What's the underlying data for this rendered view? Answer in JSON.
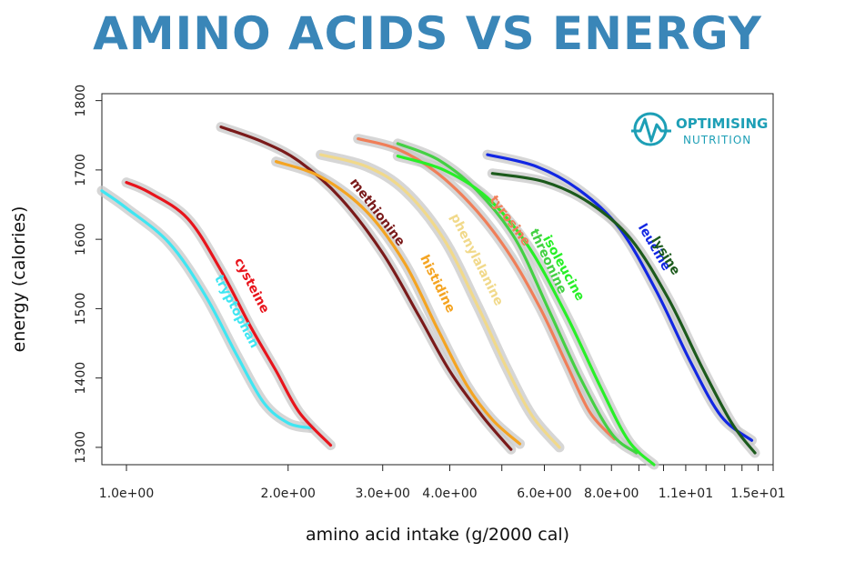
{
  "title": "AMINO ACIDS VS ENERGY",
  "logo": {
    "name_line1": "OPTIMISING",
    "name_line2": "NUTRITION",
    "color": "#1d9fb6",
    "icon": "heartbeat-pulse-icon"
  },
  "chart_data": {
    "type": "line",
    "title": "AMINO ACIDS VS ENERGY",
    "xlabel": "amino acid intake (g/2000 cal)",
    "ylabel": "energy (calories)",
    "x_scale": "log",
    "xlim": [
      0.9,
      16
    ],
    "ylim": [
      1275,
      1810
    ],
    "x_ticks": [
      {
        "value": 1.0,
        "label": "1.0e+00"
      },
      {
        "value": 2.0,
        "label": "2.0e+00"
      },
      {
        "value": 3.0,
        "label": "3.0e+00"
      },
      {
        "value": 4.0,
        "label": "4.0e+00"
      },
      {
        "value": 6.0,
        "label": "6.0e+00"
      },
      {
        "value": 8.0,
        "label": "8.0e+00"
      },
      {
        "value": 11.0,
        "label": "1.1e+01"
      },
      {
        "value": 15.0,
        "label": "1.5e+01"
      }
    ],
    "x_minor_ticks": [
      5,
      7,
      9,
      10,
      12,
      13,
      14,
      16
    ],
    "y_ticks": [
      1300,
      1400,
      1500,
      1600,
      1700,
      1800
    ],
    "y_tick_labels": [
      "1300",
      "1400",
      "1500",
      "1600",
      "1700",
      "1800"
    ],
    "grid": false,
    "series": [
      {
        "name": "tryptophan",
        "color": "#3fe6f2",
        "x": [
          0.9,
          1.0,
          1.2,
          1.4,
          1.6,
          1.8,
          2.0,
          2.2
        ],
        "y": [
          1670,
          1645,
          1595,
          1520,
          1435,
          1365,
          1335,
          1328
        ]
      },
      {
        "name": "cysteine",
        "color": "#e8141c",
        "x": [
          1.0,
          1.1,
          1.3,
          1.5,
          1.7,
          1.9,
          2.1,
          2.4
        ],
        "y": [
          1682,
          1668,
          1630,
          1555,
          1475,
          1410,
          1350,
          1303
        ]
      },
      {
        "name": "methionine",
        "color": "#7a1a1a",
        "x": [
          1.5,
          1.8,
          2.1,
          2.5,
          3.0,
          3.5,
          4.0,
          4.6,
          5.2
        ],
        "y": [
          1762,
          1740,
          1712,
          1660,
          1580,
          1490,
          1410,
          1345,
          1297
        ]
      },
      {
        "name": "histidine",
        "color": "#f4a422",
        "x": [
          1.9,
          2.3,
          2.8,
          3.3,
          3.8,
          4.3,
          4.8,
          5.4
        ],
        "y": [
          1712,
          1690,
          1640,
          1565,
          1470,
          1390,
          1340,
          1305
        ]
      },
      {
        "name": "phenylalanine",
        "color": "#f1d98a",
        "x": [
          2.3,
          2.8,
          3.3,
          3.9,
          4.5,
          5.1,
          5.7,
          6.4
        ],
        "y": [
          1722,
          1705,
          1670,
          1600,
          1505,
          1415,
          1345,
          1300
        ]
      },
      {
        "name": "tyrosine",
        "color": "#f07e58",
        "x": [
          2.7,
          3.2,
          3.8,
          4.5,
          5.2,
          5.9,
          6.6,
          7.3,
          8.1
        ],
        "y": [
          1745,
          1730,
          1695,
          1640,
          1575,
          1500,
          1420,
          1350,
          1312
        ]
      },
      {
        "name": "threonine",
        "color": "#44d044",
        "x": [
          3.2,
          3.8,
          4.5,
          5.3,
          6.1,
          7.0,
          8.0,
          8.9
        ],
        "y": [
          1738,
          1715,
          1670,
          1600,
          1500,
          1400,
          1320,
          1292
        ]
      },
      {
        "name": "isoleucine",
        "color": "#28ef28",
        "x": [
          3.2,
          3.9,
          4.7,
          5.6,
          6.6,
          7.6,
          8.6,
          9.6
        ],
        "y": [
          1720,
          1700,
          1660,
          1590,
          1490,
          1390,
          1310,
          1275
        ]
      },
      {
        "name": "leucine",
        "color": "#1227e3",
        "x": [
          4.7,
          5.8,
          7.0,
          8.3,
          9.7,
          11.2,
          12.8,
          14.6
        ],
        "y": [
          1722,
          1705,
          1670,
          1615,
          1525,
          1425,
          1345,
          1310
        ]
      },
      {
        "name": "lysine",
        "color": "#1c5a1c",
        "x": [
          4.8,
          6.0,
          7.3,
          8.7,
          10.2,
          11.8,
          13.4,
          14.8
        ],
        "y": [
          1695,
          1683,
          1652,
          1600,
          1515,
          1415,
          1335,
          1292
        ]
      }
    ]
  }
}
